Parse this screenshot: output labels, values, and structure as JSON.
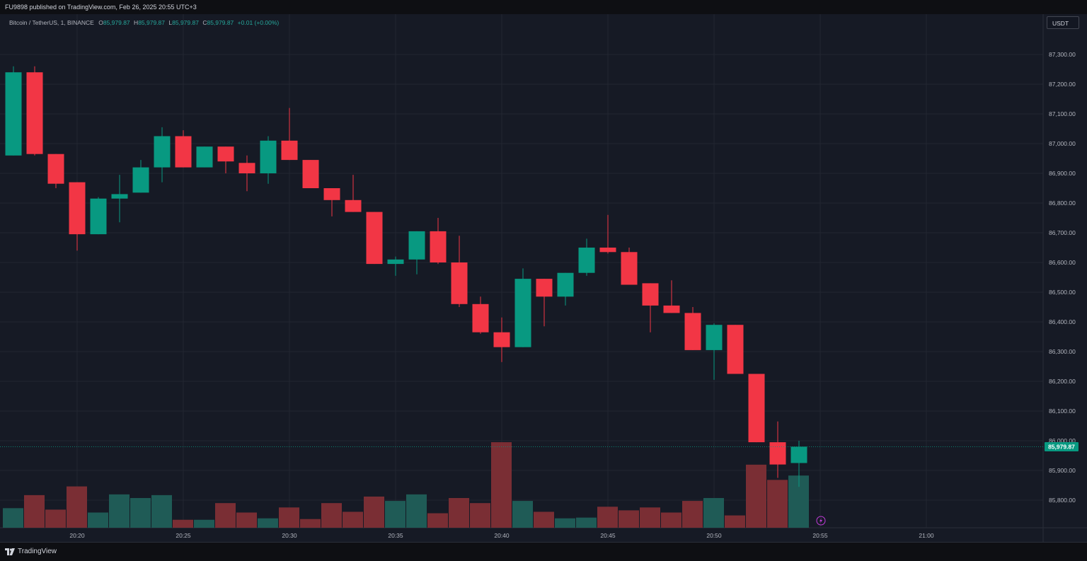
{
  "header": {
    "published_text": "FU9898 published on TradingView.com, Feb 26, 2025 20:55 UTC+3"
  },
  "legend": {
    "symbol": "Bitcoin / TetherUS, 1, BINANCE",
    "o_label": "O",
    "o_value": "85,979.87",
    "h_label": "H",
    "h_value": "85,979.87",
    "l_label": "L",
    "l_value": "85,979.87",
    "c_label": "C",
    "c_value": "85,979.87",
    "change": "+0.01 (+0.00%)"
  },
  "currency_button": "USDT",
  "footer": {
    "brand": "TradingView"
  },
  "colors": {
    "up": "#089981",
    "down": "#f23645",
    "volume_up": "#1f5b56",
    "volume_down": "#7a2e34",
    "background": "#161a25",
    "grid": "#222631"
  },
  "chart_data": {
    "type": "candlestick",
    "interval": "1m",
    "price_axis_labels": [
      "87,300.00",
      "87,200.00",
      "87,100.00",
      "87,000.00",
      "86,900.00",
      "86,800.00",
      "86,700.00",
      "86,600.00",
      "86,500.00",
      "86,400.00",
      "86,300.00",
      "86,200.00",
      "86,100.00",
      "86,000.00",
      "85,900.00",
      "85,800.00"
    ],
    "time_axis_labels": [
      "20:20",
      "20:25",
      "20:30",
      "20:35",
      "20:40",
      "20:45",
      "20:50",
      "20:55",
      "21:00"
    ],
    "time_axis_minutes": [
      3,
      8,
      13,
      18,
      23,
      28,
      33,
      38,
      43
    ],
    "y_range": [
      85710,
      87410
    ],
    "last_price_label": "85,979.87",
    "last_price": 85979.87,
    "volume_scale": [
      0,
      6000
    ],
    "candles": [
      {
        "o": 86960,
        "h": 87260,
        "l": 86960,
        "c": 87240,
        "v": 1350
      },
      {
        "o": 87240,
        "h": 87260,
        "l": 86960,
        "c": 86965,
        "v": 2250
      },
      {
        "o": 86965,
        "h": 86965,
        "l": 86850,
        "c": 86865,
        "v": 1250
      },
      {
        "o": 86870,
        "h": 86870,
        "l": 86640,
        "c": 86695,
        "v": 2850
      },
      {
        "o": 86695,
        "h": 86820,
        "l": 86695,
        "c": 86815,
        "v": 1050
      },
      {
        "o": 86815,
        "h": 86895,
        "l": 86735,
        "c": 86830,
        "v": 2300
      },
      {
        "o": 86835,
        "h": 86945,
        "l": 86835,
        "c": 86920,
        "v": 2050
      },
      {
        "o": 86920,
        "h": 87055,
        "l": 86870,
        "c": 87025,
        "v": 2250
      },
      {
        "o": 87025,
        "h": 87045,
        "l": 86920,
        "c": 86920,
        "v": 550
      },
      {
        "o": 86920,
        "h": 86990,
        "l": 86920,
        "c": 86990,
        "v": 550
      },
      {
        "o": 86990,
        "h": 86990,
        "l": 86900,
        "c": 86940,
        "v": 1700
      },
      {
        "o": 86935,
        "h": 86960,
        "l": 86840,
        "c": 86900,
        "v": 1050
      },
      {
        "o": 86900,
        "h": 87025,
        "l": 86865,
        "c": 87010,
        "v": 650
      },
      {
        "o": 87010,
        "h": 87120,
        "l": 86945,
        "c": 86945,
        "v": 1400
      },
      {
        "o": 86945,
        "h": 86945,
        "l": 86850,
        "c": 86850,
        "v": 600
      },
      {
        "o": 86850,
        "h": 86850,
        "l": 86755,
        "c": 86810,
        "v": 1700
      },
      {
        "o": 86810,
        "h": 86895,
        "l": 86770,
        "c": 86770,
        "v": 1100
      },
      {
        "o": 86770,
        "h": 86770,
        "l": 86595,
        "c": 86595,
        "v": 2150
      },
      {
        "o": 86595,
        "h": 86620,
        "l": 86555,
        "c": 86610,
        "v": 1850
      },
      {
        "o": 86610,
        "h": 86705,
        "l": 86560,
        "c": 86705,
        "v": 2300
      },
      {
        "o": 86705,
        "h": 86750,
        "l": 86595,
        "c": 86600,
        "v": 1000
      },
      {
        "o": 86600,
        "h": 86690,
        "l": 86450,
        "c": 86460,
        "v": 2050
      },
      {
        "o": 86460,
        "h": 86485,
        "l": 86360,
        "c": 86365,
        "v": 1700
      },
      {
        "o": 86365,
        "h": 86415,
        "l": 86265,
        "c": 86315,
        "v": 5900
      },
      {
        "o": 86315,
        "h": 86580,
        "l": 86315,
        "c": 86545,
        "v": 1850
      },
      {
        "o": 86545,
        "h": 86545,
        "l": 86385,
        "c": 86485,
        "v": 1100
      },
      {
        "o": 86485,
        "h": 86565,
        "l": 86455,
        "c": 86565,
        "v": 650
      },
      {
        "o": 86565,
        "h": 86680,
        "l": 86555,
        "c": 86650,
        "v": 700
      },
      {
        "o": 86650,
        "h": 86760,
        "l": 86630,
        "c": 86635,
        "v": 1450
      },
      {
        "o": 86635,
        "h": 86650,
        "l": 86525,
        "c": 86525,
        "v": 1200
      },
      {
        "o": 86530,
        "h": 86530,
        "l": 86365,
        "c": 86455,
        "v": 1400
      },
      {
        "o": 86455,
        "h": 86540,
        "l": 86430,
        "c": 86430,
        "v": 1050
      },
      {
        "o": 86430,
        "h": 86450,
        "l": 86305,
        "c": 86305,
        "v": 1850
      },
      {
        "o": 86305,
        "h": 86395,
        "l": 86205,
        "c": 86390,
        "v": 2050
      },
      {
        "o": 86390,
        "h": 86390,
        "l": 86225,
        "c": 86225,
        "v": 850
      },
      {
        "o": 86225,
        "h": 86225,
        "l": 85995,
        "c": 85995,
        "v": 4350
      },
      {
        "o": 85995,
        "h": 86065,
        "l": 85875,
        "c": 85920,
        "v": 3300
      },
      {
        "o": 85925,
        "h": 86000,
        "l": 85845,
        "c": 85980,
        "v": 3600
      }
    ]
  }
}
